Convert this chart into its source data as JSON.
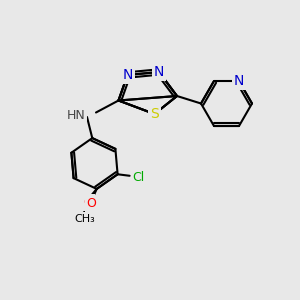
{
  "bg_color": "#e8e8e8",
  "bond_color": "#000000",
  "bond_width": 1.5,
  "atom_colors": {
    "N": "#0000cc",
    "S": "#cccc00",
    "Cl": "#00aa00",
    "O": "#ff0000",
    "C": "#000000",
    "H": "#444444",
    "NH": "#444444"
  },
  "font_size": 9,
  "fig_size": [
    3.0,
    3.0
  ],
  "dpi": 100
}
